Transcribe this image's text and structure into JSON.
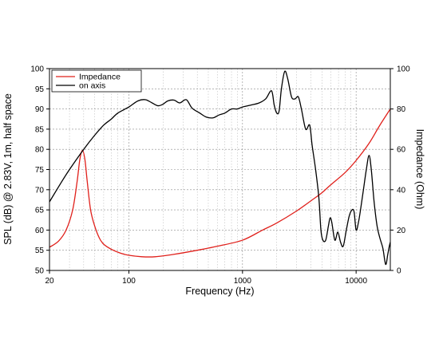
{
  "chart_data": {
    "type": "line",
    "xlabel": "Frequency (Hz)",
    "ylabel_left": "SPL (dB) @ 2.83V, 1m, half space",
    "ylabel_right": "Impedance (Ohm)",
    "xscale": "log",
    "xlim": [
      20,
      20000
    ],
    "ylim_left": [
      50,
      100
    ],
    "ylim_right": [
      0,
      100
    ],
    "x_ticks": [
      {
        "value": 20,
        "label": "20"
      },
      {
        "value": 100,
        "label": "100"
      },
      {
        "value": 1000,
        "label": "1000"
      },
      {
        "value": 10000,
        "label": "10000"
      }
    ],
    "y_ticks_left": [
      {
        "value": 50,
        "label": "50"
      },
      {
        "value": 55,
        "label": "55"
      },
      {
        "value": 60,
        "label": "60"
      },
      {
        "value": 65,
        "label": "65"
      },
      {
        "value": 70,
        "label": "70"
      },
      {
        "value": 75,
        "label": "75"
      },
      {
        "value": 80,
        "label": "80"
      },
      {
        "value": 85,
        "label": "85"
      },
      {
        "value": 90,
        "label": "90"
      },
      {
        "value": 95,
        "label": "95"
      },
      {
        "value": 100,
        "label": "100"
      }
    ],
    "y_ticks_right": [
      {
        "value": 0,
        "label": "0"
      },
      {
        "value": 20,
        "label": "20"
      },
      {
        "value": 40,
        "label": "40"
      },
      {
        "value": 60,
        "label": "60"
      },
      {
        "value": 80,
        "label": "80"
      },
      {
        "value": 100,
        "label": "100"
      }
    ],
    "grid": true,
    "legend": {
      "position": "top-left"
    },
    "series": [
      {
        "name": "Impedance",
        "color": "#e0201b",
        "axis": "right",
        "points": [
          [
            20,
            11.5
          ],
          [
            24,
            14.5
          ],
          [
            28,
            20
          ],
          [
            32,
            30
          ],
          [
            35,
            44
          ],
          [
            37,
            55
          ],
          [
            39,
            59.5
          ],
          [
            41,
            55
          ],
          [
            43,
            44
          ],
          [
            46,
            30
          ],
          [
            50,
            22
          ],
          [
            55,
            16
          ],
          [
            60,
            13
          ],
          [
            70,
            10.5
          ],
          [
            85,
            8.5
          ],
          [
            100,
            7.5
          ],
          [
            130,
            6.8
          ],
          [
            170,
            6.8
          ],
          [
            250,
            8
          ],
          [
            400,
            10
          ],
          [
            600,
            12
          ],
          [
            1000,
            15
          ],
          [
            1500,
            20
          ],
          [
            2000,
            23.5
          ],
          [
            3000,
            29.5
          ],
          [
            4000,
            34.5
          ],
          [
            5000,
            38.5
          ],
          [
            6000,
            42.5
          ],
          [
            8000,
            48.5
          ],
          [
            10000,
            54.5
          ],
          [
            13000,
            63
          ],
          [
            16000,
            71.5
          ],
          [
            20000,
            80
          ]
        ]
      },
      {
        "name": "on axis",
        "color": "#000000",
        "axis": "left",
        "points": [
          [
            20,
            67
          ],
          [
            25,
            71.5
          ],
          [
            30,
            75
          ],
          [
            40,
            80
          ],
          [
            50,
            83.5
          ],
          [
            60,
            86
          ],
          [
            70,
            87.5
          ],
          [
            80,
            89
          ],
          [
            100,
            90.5
          ],
          [
            120,
            92
          ],
          [
            140,
            92.3
          ],
          [
            160,
            91.5
          ],
          [
            180,
            90.8
          ],
          [
            200,
            91.2
          ],
          [
            220,
            92
          ],
          [
            250,
            92.2
          ],
          [
            280,
            91.5
          ],
          [
            320,
            92.3
          ],
          [
            360,
            90.2
          ],
          [
            420,
            89
          ],
          [
            480,
            88
          ],
          [
            550,
            87.8
          ],
          [
            620,
            88.5
          ],
          [
            700,
            89
          ],
          [
            800,
            90
          ],
          [
            900,
            90
          ],
          [
            1000,
            90.5
          ],
          [
            1200,
            91
          ],
          [
            1400,
            91.5
          ],
          [
            1600,
            92.5
          ],
          [
            1800,
            94.5
          ],
          [
            1900,
            91
          ],
          [
            2000,
            89
          ],
          [
            2100,
            89.5
          ],
          [
            2200,
            95
          ],
          [
            2350,
            99.3
          ],
          [
            2500,
            97.5
          ],
          [
            2700,
            93
          ],
          [
            2900,
            92.5
          ],
          [
            3100,
            93
          ],
          [
            3300,
            90
          ],
          [
            3600,
            85
          ],
          [
            3900,
            86
          ],
          [
            4100,
            81
          ],
          [
            4400,
            75
          ],
          [
            4700,
            68
          ],
          [
            4900,
            60
          ],
          [
            5100,
            57.5
          ],
          [
            5400,
            57.5
          ],
          [
            5700,
            61
          ],
          [
            5900,
            63
          ],
          [
            6100,
            62
          ],
          [
            6500,
            57.5
          ],
          [
            6900,
            59.5
          ],
          [
            7300,
            57
          ],
          [
            7700,
            56
          ],
          [
            8200,
            60
          ],
          [
            8700,
            63.5
          ],
          [
            9200,
            65
          ],
          [
            9600,
            64.5
          ],
          [
            10000,
            60
          ],
          [
            10500,
            62
          ],
          [
            11000,
            65.5
          ],
          [
            11600,
            70
          ],
          [
            12300,
            75
          ],
          [
            13000,
            78.5
          ],
          [
            13600,
            75
          ],
          [
            14400,
            67
          ],
          [
            15300,
            61
          ],
          [
            16200,
            58
          ],
          [
            17200,
            55.5
          ],
          [
            18200,
            51.5
          ],
          [
            19000,
            54
          ],
          [
            19600,
            56
          ],
          [
            20000,
            57
          ]
        ]
      }
    ]
  }
}
